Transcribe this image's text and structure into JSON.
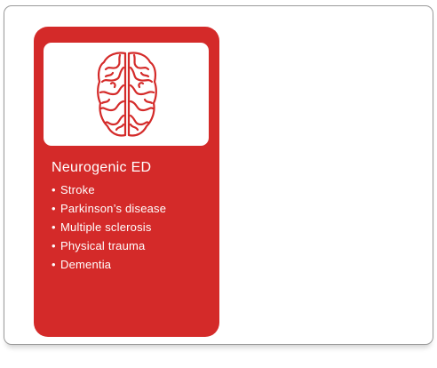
{
  "card": {
    "title": "Neurogenic ED",
    "items": [
      "Stroke",
      "Parkinson’s disease",
      "Multiple sclerosis",
      "Physical trauma",
      "Dementia"
    ],
    "icon": "brain-icon",
    "color": "#d42a29"
  }
}
